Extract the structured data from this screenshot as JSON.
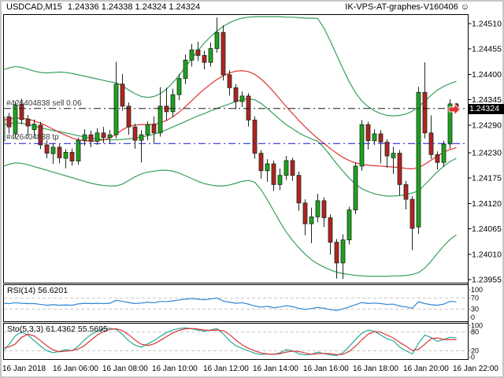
{
  "header": {
    "symbol_period": "USDCAD,M15",
    "ohlc": "1.24336 1.24338 1.24324 1.24324",
    "brand": "IK-VPS-AT-graphes-V160406",
    "smiley": "☺"
  },
  "orders": {
    "sell_label": "#426404838 sell 0.06",
    "tp_label": "#426404838 tp",
    "sell_price": 1.24326,
    "tp_price": 1.2425
  },
  "price_axis": {
    "labels": [
      "1.24510",
      "1.24455",
      "1.24400",
      "1.24345",
      "1.24290",
      "1.24230",
      "1.24175",
      "1.24120",
      "1.24065",
      "1.24010",
      "1.23955"
    ],
    "current": "1.24324"
  },
  "time_axis": [
    "16 Jan 2018",
    "16 Jan 06:00",
    "16 Jan 08:00",
    "16 Jan 10:00",
    "16 Jan 12:00",
    "16 Jan 14:00",
    "16 Jan 16:00",
    "16 Jan 18:00",
    "16 Jan 20:00",
    "16 Jan 22:00"
  ],
  "indicators": {
    "rsi_label": "RSI(14) 56.6201",
    "sto_label": "Sto(5,3,3) 61.4362 55.5695",
    "rsi_scale": [
      100,
      70,
      30,
      0
    ],
    "rsi_levels": [
      70,
      30
    ],
    "sto_scale": [
      100,
      80,
      20,
      0
    ],
    "sto_levels": [
      80,
      20
    ]
  },
  "colors": {
    "up": "#1fa11f",
    "down": "#b22222",
    "candle_outline": "#1b2b1b",
    "bb": "#36a05a",
    "ma": "#e03232",
    "rsi": "#2f86d5",
    "sto_k": "#27aaa0",
    "sto_d": "#d93636",
    "sell_line": "#1a1a1a",
    "tp_line": "#1414d9",
    "level": "#c9c9c9",
    "axis": "#000000",
    "price_box_bg": "#000000",
    "price_box_fg": "#ffffff"
  },
  "chart_data": {
    "type": "candlestick",
    "title": "USDCAD,M15",
    "symbol": "USDCAD",
    "timeframe": "M15",
    "start_time": "16 Jan 2018 04:00",
    "interval_min": 15,
    "ylim": [
      1.23946,
      1.2453
    ],
    "grid": false,
    "candles_ohlc": [
      [
        1.24255,
        1.2432,
        1.24248,
        1.24308
      ],
      [
        1.24308,
        1.24316,
        1.24272,
        1.24286
      ],
      [
        1.24272,
        1.24341,
        1.24262,
        1.24333
      ],
      [
        1.24335,
        1.24347,
        1.24292,
        1.24302
      ],
      [
        1.24303,
        1.24312,
        1.24268,
        1.24288
      ],
      [
        1.2428,
        1.24302,
        1.24263,
        1.24292
      ],
      [
        1.2429,
        1.24297,
        1.24238,
        1.24247
      ],
      [
        1.24247,
        1.24257,
        1.24218,
        1.24229
      ],
      [
        1.24228,
        1.24251,
        1.24206,
        1.24242
      ],
      [
        1.24242,
        1.24248,
        1.24207,
        1.24219
      ],
      [
        1.24218,
        1.24238,
        1.24196,
        1.24231
      ],
      [
        1.24231,
        1.24239,
        1.24202,
        1.24212
      ],
      [
        1.24212,
        1.24263,
        1.24204,
        1.24257
      ],
      [
        1.24257,
        1.24281,
        1.24246,
        1.24269
      ],
      [
        1.24269,
        1.24278,
        1.24242,
        1.24255
      ],
      [
        1.24255,
        1.24283,
        1.24247,
        1.24273
      ],
      [
        1.24273,
        1.24286,
        1.24251,
        1.24263
      ],
      [
        1.24263,
        1.24279,
        1.24249,
        1.24269
      ],
      [
        1.24269,
        1.24427,
        1.24261,
        1.24379
      ],
      [
        1.24379,
        1.24401,
        1.24321,
        1.24331
      ],
      [
        1.24331,
        1.24339,
        1.24269,
        1.24286
      ],
      [
        1.24286,
        1.24293,
        1.24239,
        1.24257
      ],
      [
        1.24257,
        1.24279,
        1.24209,
        1.24269
      ],
      [
        1.24269,
        1.24298,
        1.24257,
        1.24291
      ],
      [
        1.24291,
        1.24309,
        1.24251,
        1.24273
      ],
      [
        1.24273,
        1.24372,
        1.24265,
        1.24331
      ],
      [
        1.24331,
        1.24371,
        1.24299,
        1.24319
      ],
      [
        1.24319,
        1.24369,
        1.24307,
        1.24356
      ],
      [
        1.24356,
        1.24401,
        1.24344,
        1.24391
      ],
      [
        1.24391,
        1.24443,
        1.24379,
        1.24431
      ],
      [
        1.24431,
        1.24466,
        1.24417,
        1.24453
      ],
      [
        1.24453,
        1.24471,
        1.24429,
        1.24441
      ],
      [
        1.24441,
        1.24451,
        1.24411,
        1.24426
      ],
      [
        1.24426,
        1.24469,
        1.24417,
        1.24456
      ],
      [
        1.24456,
        1.24523,
        1.24447,
        1.24491
      ],
      [
        1.24491,
        1.24506,
        1.24387,
        1.24399
      ],
      [
        1.24399,
        1.24409,
        1.24354,
        1.24371
      ],
      [
        1.24371,
        1.24379,
        1.24324,
        1.24341
      ],
      [
        1.24341,
        1.24363,
        1.24329,
        1.24353
      ],
      [
        1.24353,
        1.24359,
        1.24287,
        1.24301
      ],
      [
        1.24301,
        1.24309,
        1.24217,
        1.24229
      ],
      [
        1.24229,
        1.24236,
        1.24174,
        1.24191
      ],
      [
        1.24191,
        1.24216,
        1.24167,
        1.24206
      ],
      [
        1.24206,
        1.24213,
        1.24147,
        1.24161
      ],
      [
        1.24161,
        1.24196,
        1.24149,
        1.24181
      ],
      [
        1.24181,
        1.24223,
        1.24171,
        1.24213
      ],
      [
        1.24213,
        1.24219,
        1.24169,
        1.24181
      ],
      [
        1.24181,
        1.24189,
        1.24104,
        1.24121
      ],
      [
        1.24121,
        1.24129,
        1.24051,
        1.24076
      ],
      [
        1.24076,
        1.24111,
        1.24034,
        1.24091
      ],
      [
        1.24091,
        1.24141,
        1.24079,
        1.24126
      ],
      [
        1.24126,
        1.24133,
        1.24069,
        1.24089
      ],
      [
        1.24089,
        1.24096,
        1.24009,
        1.24036
      ],
      [
        1.24036,
        1.24043,
        1.23957,
        1.23991
      ],
      [
        1.23991,
        1.24053,
        1.23956,
        1.24041
      ],
      [
        1.24041,
        1.24113,
        1.24031,
        1.24106
      ],
      [
        1.24106,
        1.24209,
        1.24097,
        1.24201
      ],
      [
        1.24201,
        1.24301,
        1.24191,
        1.24291
      ],
      [
        1.24291,
        1.24297,
        1.24237,
        1.24256
      ],
      [
        1.24256,
        1.24281,
        1.24247,
        1.24271
      ],
      [
        1.24271,
        1.24279,
        1.24207,
        1.24253
      ],
      [
        1.24253,
        1.24259,
        1.24197,
        1.24223
      ],
      [
        1.24219,
        1.24243,
        1.24184,
        1.24229
      ],
      [
        1.24229,
        1.24236,
        1.24137,
        1.24161
      ],
      [
        1.24161,
        1.24169,
        1.24107,
        1.24129
      ],
      [
        1.24129,
        1.24136,
        1.24019,
        1.24066
      ],
      [
        1.24069,
        1.24373,
        1.24054,
        1.24361
      ],
      [
        1.24361,
        1.24426,
        1.24261,
        1.24273
      ],
      [
        1.24273,
        1.24311,
        1.24217,
        1.24226
      ],
      [
        1.24226,
        1.24233,
        1.24194,
        1.24209
      ],
      [
        1.24209,
        1.24256,
        1.24199,
        1.24249
      ],
      [
        1.24249,
        1.24346,
        1.24239,
        1.24336
      ],
      [
        1.24336,
        1.24338,
        1.24324,
        1.24324
      ]
    ],
    "bb_upper": [
      1.2441,
      1.24414,
      1.24417,
      1.24415,
      1.24411,
      1.24407,
      1.24404,
      1.24403,
      1.24404,
      1.24405,
      1.24404,
      1.24402,
      1.24399,
      1.24396,
      1.24393,
      1.2439,
      1.24387,
      1.24384,
      1.24382,
      1.24375,
      1.24366,
      1.24358,
      1.24352,
      1.2435,
      1.24352,
      1.24358,
      1.24368,
      1.24382,
      1.24398,
      1.24416,
      1.24434,
      1.24452,
      1.24468,
      1.24482,
      1.24494,
      1.24504,
      1.24512,
      1.24518,
      1.24522,
      1.24524,
      1.24525,
      1.24525,
      1.24525,
      1.24525,
      1.24525,
      1.24524,
      1.24524,
      1.24523,
      1.24522,
      1.24522,
      1.24521,
      1.245,
      1.24472,
      1.24442,
      1.24412,
      1.24384,
      1.2436,
      1.24342,
      1.2433,
      1.24321,
      1.24315,
      1.24311,
      1.2431,
      1.24311,
      1.24314,
      1.2432,
      1.2433,
      1.24342,
      1.24355,
      1.24366,
      1.24374,
      1.2438,
      1.24385
    ],
    "bb_middle": [
      1.2429,
      1.24293,
      1.24295,
      1.24294,
      1.24291,
      1.24288,
      1.24284,
      1.24281,
      1.24278,
      1.24276,
      1.24273,
      1.2427,
      1.24267,
      1.24264,
      1.24262,
      1.2426,
      1.24259,
      1.24258,
      1.24258,
      1.24259,
      1.2426,
      1.24262,
      1.24264,
      1.24267,
      1.2427,
      1.24274,
      1.2428,
      1.24286,
      1.24292,
      1.24298,
      1.24304,
      1.2431,
      1.24315,
      1.24321,
      1.24326,
      1.24331,
      1.24336,
      1.24341,
      1.24345,
      1.24347,
      1.24345,
      1.24337,
      1.24326,
      1.24314,
      1.24302,
      1.24291,
      1.24282,
      1.24273,
      1.24266,
      1.2426,
      1.24255,
      1.24241,
      1.24224,
      1.24206,
      1.2419,
      1.24175,
      1.24162,
      1.24152,
      1.24146,
      1.24141,
      1.24138,
      1.24136,
      1.24136,
      1.24137,
      1.24139,
      1.24143,
      1.24147,
      1.24161,
      1.24175,
      1.24189,
      1.24201,
      1.24211,
      1.24218
    ],
    "bb_lower": [
      1.242,
      1.24205,
      1.24208,
      1.24207,
      1.24204,
      1.242,
      1.24196,
      1.24192,
      1.24188,
      1.24184,
      1.2418,
      1.24176,
      1.24172,
      1.24168,
      1.24164,
      1.24161,
      1.24159,
      1.24158,
      1.24158,
      1.24162,
      1.2417,
      1.24178,
      1.24184,
      1.24188,
      1.2419,
      1.24192,
      1.24192,
      1.2419,
      1.24186,
      1.2418,
      1.24174,
      1.24168,
      1.24163,
      1.2416,
      1.24158,
      1.24158,
      1.2416,
      1.24164,
      1.24168,
      1.2417,
      1.24166,
      1.2415,
      1.24128,
      1.24104,
      1.2408,
      1.24058,
      1.2404,
      1.24024,
      1.2401,
      1.23998,
      1.23989,
      1.23982,
      1.23976,
      1.23971,
      1.23968,
      1.23966,
      1.23964,
      1.23963,
      1.23962,
      1.23962,
      1.23962,
      1.23962,
      1.23963,
      1.23963,
      1.23964,
      1.23966,
      1.2397,
      1.2398,
      1.23995,
      1.24012,
      1.24028,
      1.24042,
      1.24052
    ],
    "ma_red": [
      1.243,
      1.24303,
      1.24305,
      1.24305,
      1.24303,
      1.24299,
      1.24294,
      1.24288,
      1.24281,
      1.24274,
      1.24268,
      1.24262,
      1.24258,
      1.24256,
      1.24255,
      1.24256,
      1.24258,
      1.24262,
      1.2427,
      1.2428,
      1.24287,
      1.2429,
      1.24291,
      1.24291,
      1.24292,
      1.24295,
      1.243,
      1.24308,
      1.24318,
      1.2433,
      1.24343,
      1.24356,
      1.24368,
      1.24379,
      1.24389,
      1.24397,
      1.24403,
      1.24407,
      1.24408,
      1.24406,
      1.244,
      1.2439,
      1.24377,
      1.24362,
      1.24346,
      1.2433,
      1.24315,
      1.243,
      1.24286,
      1.24273,
      1.24261,
      1.2425,
      1.24239,
      1.24229,
      1.2422,
      1.24213,
      1.24208,
      1.24205,
      1.24203,
      1.24202,
      1.24201,
      1.242,
      1.24199,
      1.24198,
      1.24196,
      1.24195,
      1.24198,
      1.24205,
      1.24214,
      1.24223,
      1.24231,
      1.24237,
      1.24241
    ],
    "rsi": [
      51,
      50,
      53,
      51,
      50,
      50,
      47,
      44,
      46,
      44,
      45,
      44,
      49,
      51,
      50,
      51,
      50,
      51,
      62,
      58,
      54,
      50,
      52,
      55,
      53,
      58,
      57,
      60,
      63,
      66,
      68,
      66,
      64,
      67,
      70,
      59,
      55,
      51,
      53,
      48,
      41,
      37,
      40,
      35,
      38,
      42,
      39,
      33,
      29,
      32,
      36,
      33,
      28,
      25,
      31,
      38,
      46,
      54,
      50,
      52,
      50,
      47,
      48,
      41,
      38,
      33,
      57,
      50,
      46,
      44,
      48,
      58,
      56.6201
    ],
    "sto_k": [
      18,
      40,
      68,
      80,
      70,
      52,
      35,
      20,
      14,
      18,
      24,
      20,
      35,
      55,
      72,
      82,
      90,
      92,
      88,
      72,
      52,
      38,
      32,
      42,
      52,
      66,
      78,
      86,
      91,
      93,
      90,
      86,
      82,
      86,
      91,
      74,
      52,
      36,
      28,
      20,
      12,
      8,
      10,
      9,
      14,
      24,
      20,
      11,
      7,
      9,
      16,
      11,
      7,
      5,
      14,
      34,
      56,
      76,
      86,
      82,
      70,
      58,
      52,
      32,
      20,
      10,
      44,
      70,
      62,
      50,
      56,
      63,
      61.4362
    ],
    "sto_d": [
      30,
      32,
      42,
      63,
      73,
      67,
      52,
      36,
      23,
      17,
      19,
      21,
      26,
      37,
      54,
      70,
      81,
      88,
      90,
      84,
      71,
      54,
      41,
      37,
      42,
      53,
      65,
      77,
      85,
      90,
      91,
      89,
      86,
      85,
      86,
      84,
      72,
      54,
      39,
      28,
      20,
      13,
      10,
      9,
      11,
      16,
      19,
      18,
      13,
      9,
      11,
      12,
      11,
      8,
      9,
      18,
      35,
      55,
      73,
      81,
      79,
      70,
      61,
      47,
      35,
      21,
      25,
      41,
      59,
      61,
      56,
      56,
      55.5695
    ]
  }
}
